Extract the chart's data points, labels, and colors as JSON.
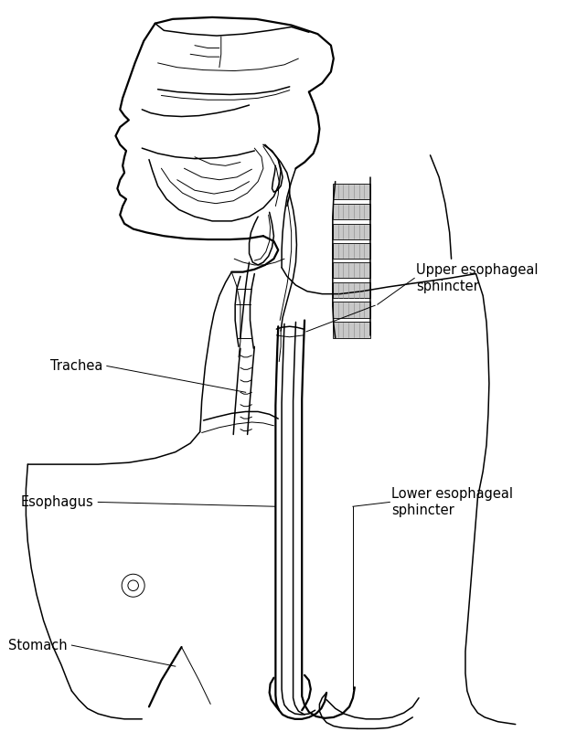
{
  "background_color": "#ffffff",
  "line_color": "#000000",
  "label_color": "#000000",
  "labels": {
    "upper_esophageal_sphincter": "Upper esophageal\nsphincter",
    "trachea": "Trachea",
    "esophagus": "Esophagus",
    "lower_esophageal_sphincter": "Lower esophageal\nsphincter",
    "stomach": "Stomach"
  },
  "fig_width": 6.19,
  "fig_height": 8.24,
  "dpi": 100,
  "font_size": 10.5,
  "lw_thin": 0.7,
  "lw_med": 1.1,
  "lw_thick": 1.6
}
